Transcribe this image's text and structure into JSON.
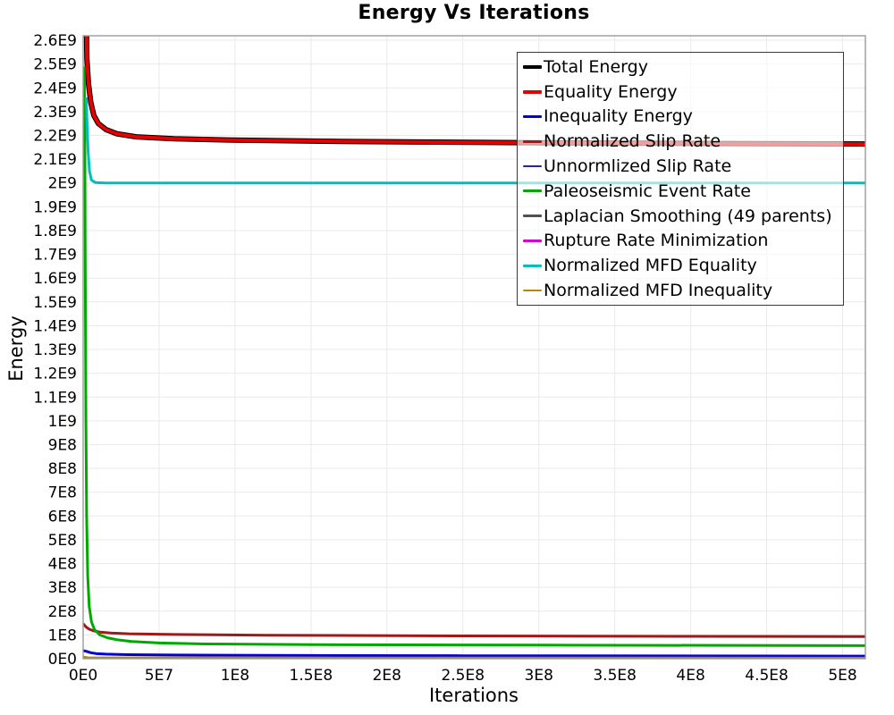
{
  "title": "Energy Vs Iterations",
  "x_axis_label": "Iterations",
  "y_axis_label": "Energy",
  "colors": {
    "background": "#ffffff",
    "grid": "#e9e9e9",
    "plot_border": "#9a9a9a",
    "legend_border": "#3a3a3a",
    "tick_text": "#000000"
  },
  "chart_data": {
    "type": "line",
    "title": "Energy Vs Iterations",
    "xlabel": "Iterations",
    "ylabel": "Energy",
    "xlim": [
      0,
      515000000
    ],
    "ylim": [
      0,
      2619000000
    ],
    "grid": true,
    "legend_position": "inside-top-right",
    "x_ticks": [
      {
        "value": 0,
        "label": "0E0"
      },
      {
        "value": 50000000,
        "label": "5E7"
      },
      {
        "value": 100000000,
        "label": "1E8"
      },
      {
        "value": 150000000,
        "label": "1.5E8"
      },
      {
        "value": 200000000,
        "label": "2E8"
      },
      {
        "value": 250000000,
        "label": "2.5E8"
      },
      {
        "value": 300000000,
        "label": "3E8"
      },
      {
        "value": 350000000,
        "label": "3.5E8"
      },
      {
        "value": 400000000,
        "label": "4E8"
      },
      {
        "value": 450000000,
        "label": "4.5E8"
      },
      {
        "value": 500000000,
        "label": "5E8"
      }
    ],
    "y_ticks": [
      {
        "value": 0,
        "label": "0E0"
      },
      {
        "value": 100000000,
        "label": "1E8"
      },
      {
        "value": 200000000,
        "label": "2E8"
      },
      {
        "value": 300000000,
        "label": "3E8"
      },
      {
        "value": 400000000,
        "label": "4E8"
      },
      {
        "value": 500000000,
        "label": "5E8"
      },
      {
        "value": 600000000,
        "label": "6E8"
      },
      {
        "value": 700000000,
        "label": "7E8"
      },
      {
        "value": 800000000,
        "label": "8E8"
      },
      {
        "value": 900000000,
        "label": "9E8"
      },
      {
        "value": 1000000000,
        "label": "1E9"
      },
      {
        "value": 1100000000,
        "label": "1.1E9"
      },
      {
        "value": 1200000000,
        "label": "1.2E9"
      },
      {
        "value": 1300000000,
        "label": "1.3E9"
      },
      {
        "value": 1400000000,
        "label": "1.4E9"
      },
      {
        "value": 1500000000,
        "label": "1.5E9"
      },
      {
        "value": 1600000000,
        "label": "1.6E9"
      },
      {
        "value": 1700000000,
        "label": "1.7E9"
      },
      {
        "value": 1800000000,
        "label": "1.8E9"
      },
      {
        "value": 1900000000,
        "label": "1.9E9"
      },
      {
        "value": 2000000000,
        "label": "2E9"
      },
      {
        "value": 2100000000,
        "label": "2.1E9"
      },
      {
        "value": 2200000000,
        "label": "2.2E9"
      },
      {
        "value": 2300000000,
        "label": "2.3E9"
      },
      {
        "value": 2400000000,
        "label": "2.4E9"
      },
      {
        "value": 2500000000,
        "label": "2.5E9"
      },
      {
        "value": 2600000000,
        "label": "2.6E9"
      }
    ],
    "series": [
      {
        "name": "Total Energy",
        "color": "#000000",
        "width": 6,
        "points": [
          [
            1800000,
            3100000000.0
          ],
          [
            2000000,
            2720000000.0
          ],
          [
            2500000,
            2520000000.0
          ],
          [
            3500000,
            2420000000.0
          ],
          [
            5000000,
            2340000000.0
          ],
          [
            7000000,
            2285000000.0
          ],
          [
            10000000,
            2250000000.0
          ],
          [
            15000000,
            2225000000.0
          ],
          [
            22000000,
            2207000000.0
          ],
          [
            35000000,
            2194000000.0
          ],
          [
            60000000,
            2186000000.0
          ],
          [
            100000000,
            2180000000.0
          ],
          [
            180000000,
            2174000000.0
          ],
          [
            300000000,
            2169000000.0
          ],
          [
            420000000,
            2166000000.0
          ],
          [
            515000000,
            2164000000.0
          ]
        ]
      },
      {
        "name": "Equality Energy",
        "color": "#e60000",
        "width": 4,
        "points": [
          [
            1800000,
            3100000000.0
          ],
          [
            2000000,
            2720000000.0
          ],
          [
            2500000,
            2520000000.0
          ],
          [
            3500000,
            2420000000.0
          ],
          [
            5000000,
            2340000000.0
          ],
          [
            7000000,
            2285000000.0
          ],
          [
            10000000,
            2250000000.0
          ],
          [
            15000000,
            2225000000.0
          ],
          [
            22000000,
            2207000000.0
          ],
          [
            35000000,
            2194000000.0
          ],
          [
            60000000,
            2186000000.0
          ],
          [
            100000000,
            2180000000.0
          ],
          [
            180000000,
            2174000000.0
          ],
          [
            300000000,
            2169000000.0
          ],
          [
            420000000,
            2166000000.0
          ],
          [
            515000000,
            2164000000.0
          ]
        ]
      },
      {
        "name": "Inequality Energy",
        "color": "#0000dd",
        "width": 3,
        "points": [
          [
            0,
            34000000.0
          ],
          [
            2000000,
            31000000.0
          ],
          [
            5000000,
            25000000.0
          ],
          [
            9000000,
            21000000.0
          ],
          [
            15000000,
            19000000.0
          ],
          [
            30000000,
            17000000.0
          ],
          [
            60000000,
            15500000.0
          ],
          [
            120000000,
            14000000.0
          ],
          [
            250000000,
            12500000.0
          ],
          [
            515000000,
            11000000.0
          ]
        ]
      },
      {
        "name": "Normalized Slip Rate",
        "color": "#a01818",
        "width": 3,
        "points": [
          [
            0,
            147000000.0
          ],
          [
            2000000,
            133000000.0
          ],
          [
            4000000,
            124000000.0
          ],
          [
            7000000,
            117000000.0
          ],
          [
            11000000,
            112000000.0
          ],
          [
            18000000,
            108000000.0
          ],
          [
            30000000,
            105000000.0
          ],
          [
            60000000,
            102000000.0
          ],
          [
            120000000,
            99000000.0
          ],
          [
            250000000,
            96000000.0
          ],
          [
            400000000,
            94000000.0
          ],
          [
            515000000,
            93000000.0
          ]
        ]
      },
      {
        "name": "Unnormlized Slip Rate",
        "color": "#26269c",
        "width": 2.5,
        "points": [
          [
            0,
            4500000
          ],
          [
            5000000,
            2000000
          ],
          [
            15000000,
            1600000
          ],
          [
            515000000,
            1400000
          ]
        ]
      },
      {
        "name": "Paleoseismic Event Rate",
        "color": "#00a800",
        "width": 3,
        "points": [
          [
            700000,
            2490000000.0
          ],
          [
            1100000,
            2200000000.0
          ],
          [
            1400000,
            1600000000.0
          ],
          [
            1800000,
            1000000000.0
          ],
          [
            2300000,
            600000000.0
          ],
          [
            3000000,
            350000000.0
          ],
          [
            4000000,
            220000000.0
          ],
          [
            5500000,
            155000000.0
          ],
          [
            7500000,
            122000000.0
          ],
          [
            11000000,
            100000000.0
          ],
          [
            16000000,
            88000000.0
          ],
          [
            22000000,
            80000000.0
          ],
          [
            32000000,
            72000000.0
          ],
          [
            50000000,
            66000000.0
          ],
          [
            80000000,
            62000000.0
          ],
          [
            150000000,
            59000000.0
          ],
          [
            300000000,
            57000000.0
          ],
          [
            515000000,
            55000000.0
          ]
        ]
      },
      {
        "name": "Laplacian Smoothing (49 parents)",
        "color": "#505050",
        "width": 2.5,
        "points": [
          [
            0,
            3000000
          ],
          [
            5000000,
            1300000
          ],
          [
            515000000,
            1000000
          ]
        ]
      },
      {
        "name": "Rupture Rate Minimization",
        "color": "#d400d4",
        "width": 2.5,
        "points": [
          [
            0,
            1600000
          ],
          [
            515000000,
            700000
          ]
        ]
      },
      {
        "name": "Normalized MFD Equality",
        "color": "#00bebe",
        "width": 3,
        "points": [
          [
            2000000,
            2360000000.0
          ],
          [
            2600000,
            2250000000.0
          ],
          [
            3300000,
            2130000000.0
          ],
          [
            4200000,
            2050000000.0
          ],
          [
            5500000,
            2012000000.0
          ],
          [
            8000000,
            2002000000.0
          ],
          [
            15000000,
            2000000000.0
          ],
          [
            515000000,
            2000000000.0
          ]
        ]
      },
      {
        "name": "Normalized MFD Inequality",
        "color": "#b8860b",
        "width": 2.5,
        "points": [
          [
            0,
            8000000
          ],
          [
            3000000,
            5000000
          ],
          [
            10000000,
            4000000
          ],
          [
            515000000,
            3500000
          ]
        ]
      }
    ]
  }
}
